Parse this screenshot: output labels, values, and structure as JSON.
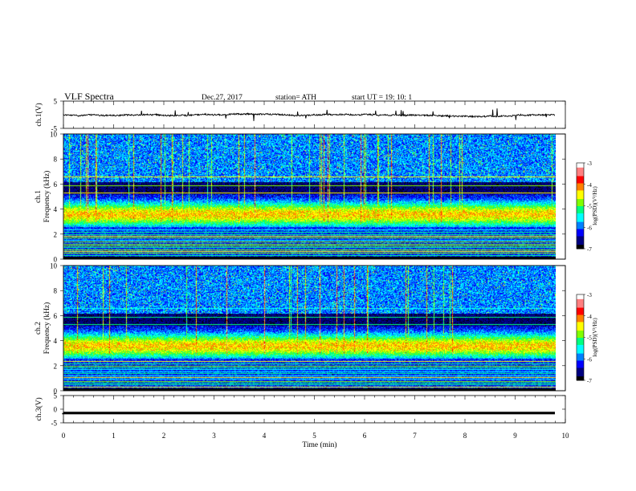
{
  "header": {
    "title": "VLF  Spectra",
    "date": "Dec.27, 2017",
    "station": "station= ATH",
    "start": "start  UT  =     19: 10: 1"
  },
  "colors": {
    "scale": [
      "#000000",
      "#000080",
      "#0000ff",
      "#0080ff",
      "#00ffff",
      "#00ff80",
      "#80ff00",
      "#ffff00",
      "#ff8000",
      "#ff0000",
      "#ff8080",
      "#ffffff"
    ]
  },
  "chart_data": [
    {
      "type": "line",
      "name": "ch1-waveform",
      "ylabel": "ch.1(V)",
      "ylim": [
        -5,
        5
      ],
      "yticks": [
        "5",
        "-5"
      ],
      "xlim": [
        0,
        10
      ],
      "level": 0,
      "duration_min": 9.8
    },
    {
      "type": "heatmap",
      "name": "ch1-spectrogram",
      "ylabel": "ch.1\nFrequency (kHz)",
      "ylim": [
        0,
        10
      ],
      "yticks": [
        "0",
        "2",
        "4",
        "6",
        "8",
        "10"
      ],
      "xlim": [
        0,
        10
      ],
      "duration_min": 9.8,
      "colorbar": {
        "label": "log(PSD)(V²/Hz)",
        "range": [
          -7,
          -3
        ],
        "ticks": [
          "-3",
          "-4",
          "-5",
          "-6",
          "-7"
        ]
      }
    },
    {
      "type": "heatmap",
      "name": "ch2-spectrogram",
      "ylabel": "ch.2\nFrequency (kHz)",
      "ylim": [
        0,
        10
      ],
      "yticks": [
        "0",
        "2",
        "4",
        "6",
        "8",
        "10"
      ],
      "xlim": [
        0,
        10
      ],
      "duration_min": 9.8,
      "colorbar": {
        "label": "log(PSD)(V²/Hz)",
        "range": [
          -7,
          -3
        ],
        "ticks": [
          "-3",
          "-4",
          "-5",
          "-6",
          "-7"
        ]
      }
    },
    {
      "type": "line",
      "name": "ch3-waveform",
      "ylabel": "ch.3(V)",
      "ylim": [
        -5,
        5
      ],
      "yticks": [
        "5",
        "0",
        "-5"
      ],
      "xlim": [
        0,
        10
      ],
      "level": -1.4,
      "duration_min": 9.8,
      "xlabel": "Time  (min)",
      "xticks": [
        "0",
        "1",
        "2",
        "3",
        "4",
        "5",
        "6",
        "7",
        "8",
        "9",
        "10"
      ]
    }
  ]
}
